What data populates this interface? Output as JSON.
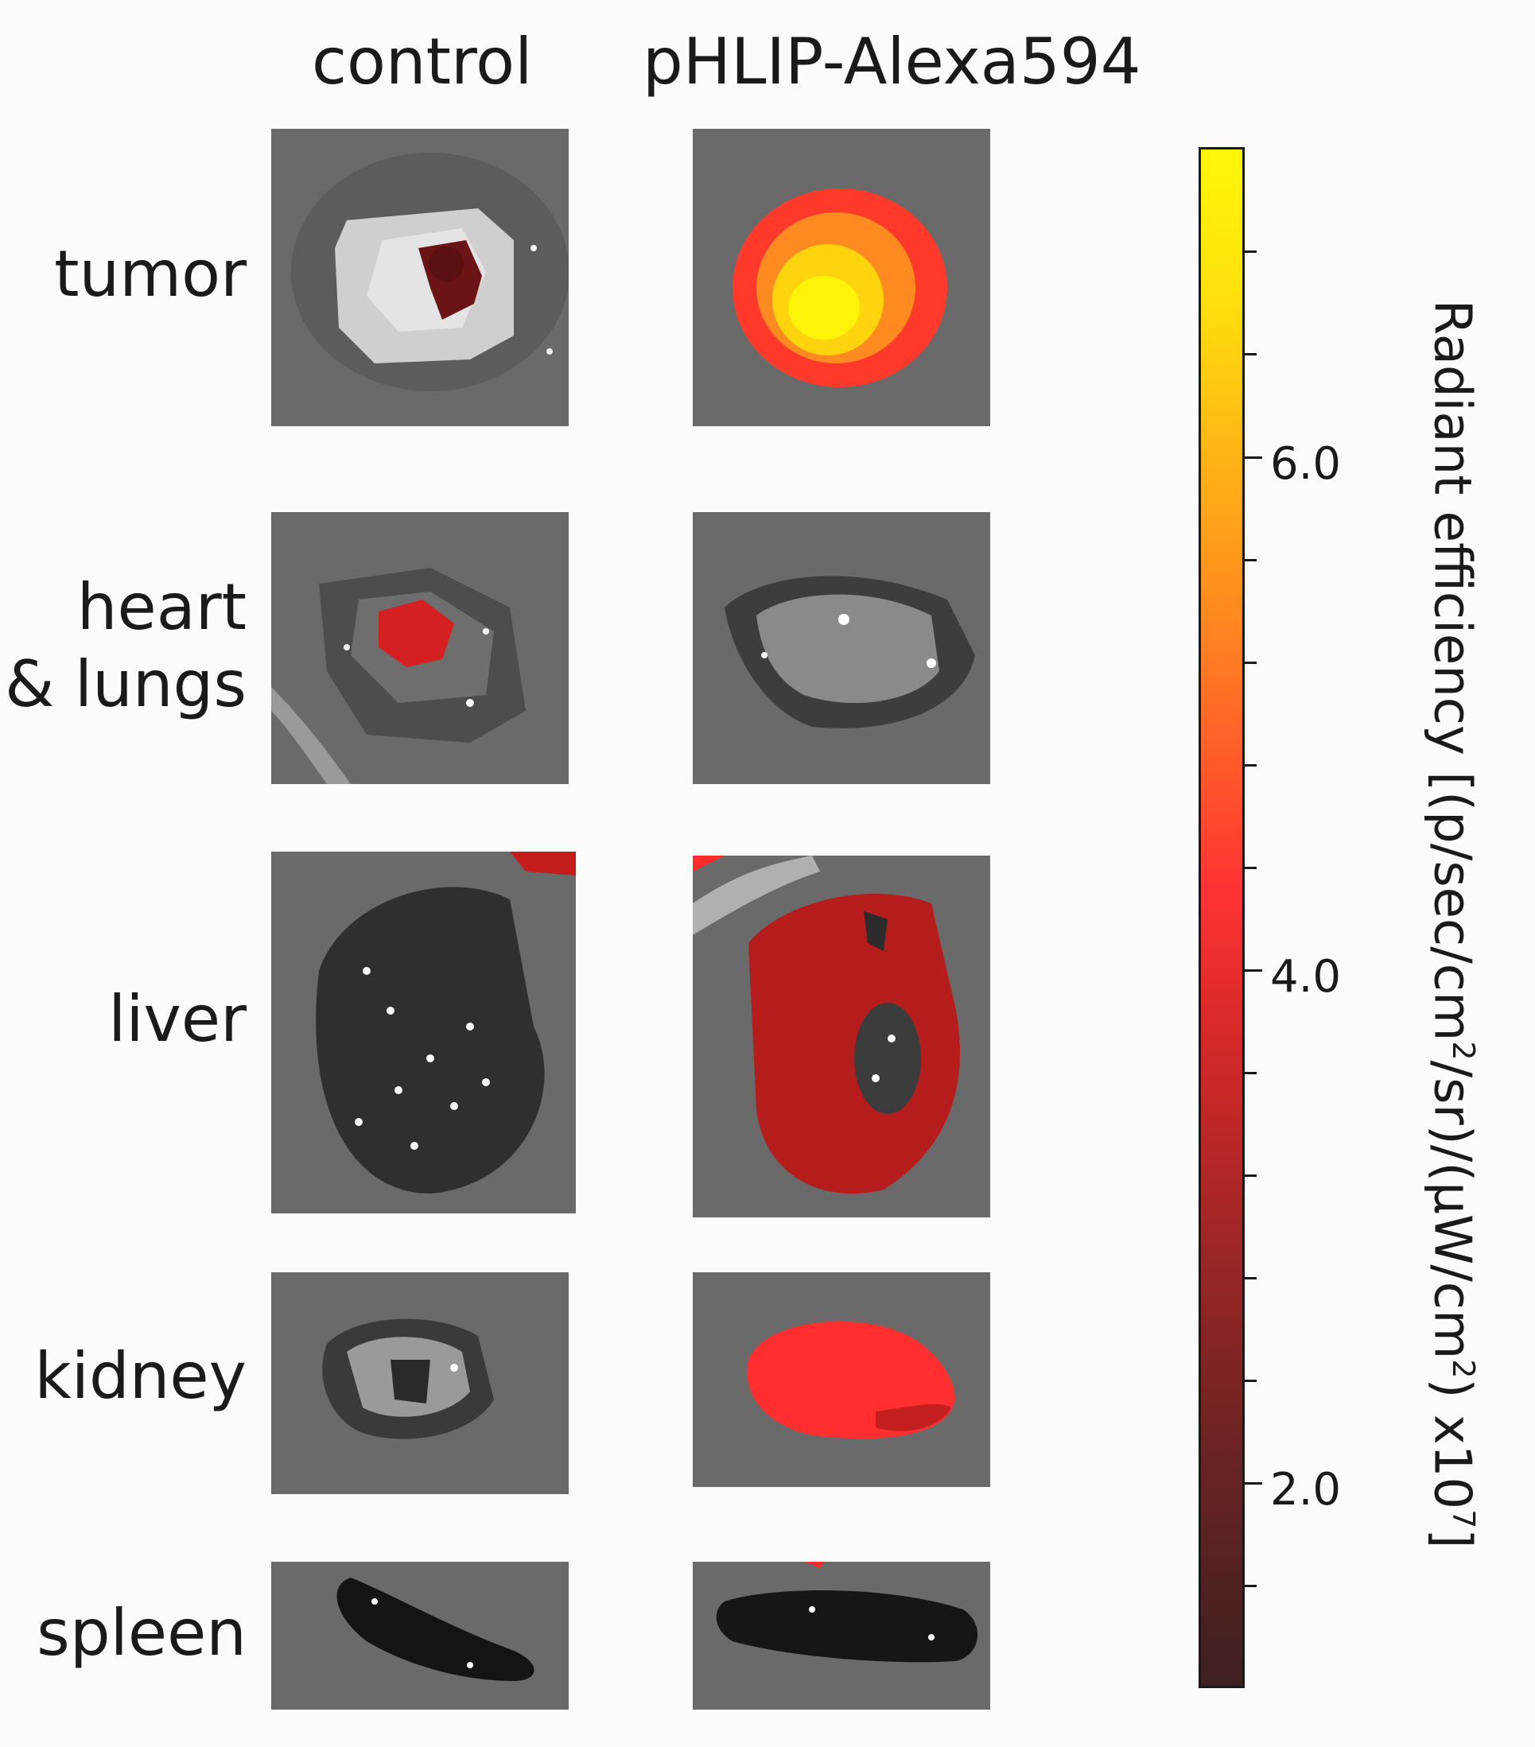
{
  "columns": [
    "control",
    "pHLIP-Alexa594"
  ],
  "rows": [
    "tumor",
    "heart",
    "& lungs",
    "liver",
    "kidney",
    "spleen"
  ],
  "colorbar": {
    "title_parts": [
      "Radiant efficiency [(p/sec/cm",
      "2",
      "/sr)/(µW/cm",
      "2",
      ") x10",
      "7",
      "]"
    ],
    "tick_labels": [
      "6.0",
      "4.0",
      "2.0"
    ],
    "colors": [
      "#3e2020",
      "#6a2322",
      "#9a2625",
      "#d42828",
      "#ff3333",
      "#ff8a20",
      "#ffdf0c",
      "#fff70a"
    ]
  }
}
